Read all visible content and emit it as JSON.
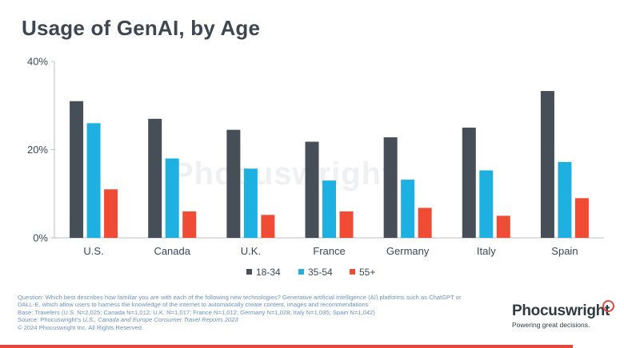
{
  "chart_data": {
    "type": "bar",
    "title": "Usage of GenAI, by Age",
    "categories": [
      "U.S.",
      "Canada",
      "U.K.",
      "France",
      "Germany",
      "Italy",
      "Spain"
    ],
    "series": [
      {
        "name": "18-34",
        "color": "#464f58",
        "values": [
          31,
          27,
          24.5,
          21.8,
          22.8,
          25,
          33.3
        ]
      },
      {
        "name": "35-54",
        "color": "#1fb0e2",
        "values": [
          26,
          18,
          15.7,
          13,
          13.2,
          15.3,
          17.2
        ]
      },
      {
        "name": "55+",
        "color": "#ef4b35",
        "values": [
          11,
          6,
          5.2,
          6,
          6.8,
          5,
          9
        ]
      }
    ],
    "yticks": [
      "0%",
      "20%",
      "40%"
    ],
    "ytick_values": [
      0,
      20,
      40
    ],
    "ylim": [
      0,
      40
    ],
    "xlabel": "",
    "ylabel": "",
    "grid": false,
    "legend_position": "bottom"
  },
  "watermark": "Phocuswright",
  "footnote": {
    "question": "Question: Which best describes how familiar you are with each of the following new technologies? Generative artificial intelligence (AI) platforms such as ChatGPT or",
    "question_cont": "DALL-E, which allow users to harness the knowledge of the internet to automatically create content, images and recommendations",
    "base": "Base: Travelers (U.S. N=2,025; Canada N=1,012; U.K. N=1,017; France N=1,012; Germany N=1,028; Italy N=1,035; Spain N=1,042)",
    "source_prefix": "Source: Phocuswright's ",
    "source_title": "U.S., Canada and Europe Consumer Travel Reports 2023",
    "copyright": "© 2024 Phocuswright Inc. All Rights Reserved."
  },
  "brand": {
    "name": "Phocuswright",
    "tagline": "Powering great decisions."
  },
  "colors": {
    "accent": "#e8463a",
    "title": "#3d4651",
    "footnote": "#6a93c2"
  }
}
